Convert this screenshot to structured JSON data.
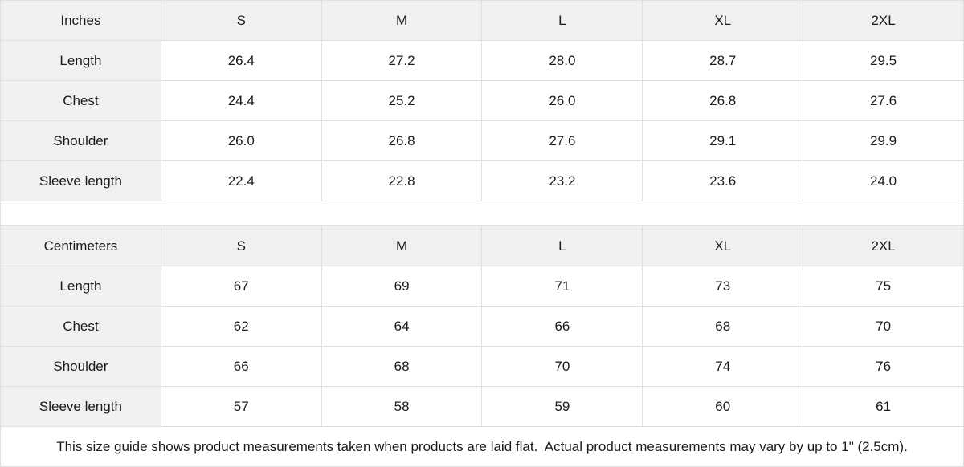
{
  "tables": [
    {
      "unit_label": "Inches",
      "sizes": [
        "S",
        "M",
        "L",
        "XL",
        "2XL"
      ],
      "rows": [
        {
          "label": "Length",
          "values": [
            "26.4",
            "27.2",
            "28.0",
            "28.7",
            "29.5"
          ]
        },
        {
          "label": "Chest",
          "values": [
            "24.4",
            "25.2",
            "26.0",
            "26.8",
            "27.6"
          ]
        },
        {
          "label": "Shoulder",
          "values": [
            "26.0",
            "26.8",
            "27.6",
            "29.1",
            "29.9"
          ]
        },
        {
          "label": "Sleeve length",
          "values": [
            "22.4",
            "22.8",
            "23.2",
            "23.6",
            "24.0"
          ]
        }
      ]
    },
    {
      "unit_label": "Centimeters",
      "sizes": [
        "S",
        "M",
        "L",
        "XL",
        "2XL"
      ],
      "rows": [
        {
          "label": "Length",
          "values": [
            "67",
            "69",
            "71",
            "73",
            "75"
          ]
        },
        {
          "label": "Chest",
          "values": [
            "62",
            "64",
            "66",
            "68",
            "70"
          ]
        },
        {
          "label": "Shoulder",
          "values": [
            "66",
            "68",
            "70",
            "74",
            "76"
          ]
        },
        {
          "label": "Sleeve length",
          "values": [
            "57",
            "58",
            "59",
            "60",
            "61"
          ]
        }
      ]
    }
  ],
  "footer": {
    "note": "This size guide shows product measurements taken when products are laid flat.  Actual product measurements may vary by up to 1\" (2.5cm)."
  },
  "colors": {
    "header_bg": "#f0f0f0",
    "border": "#e0e0e0",
    "text": "#1a1a1a",
    "cell_bg": "#ffffff"
  }
}
